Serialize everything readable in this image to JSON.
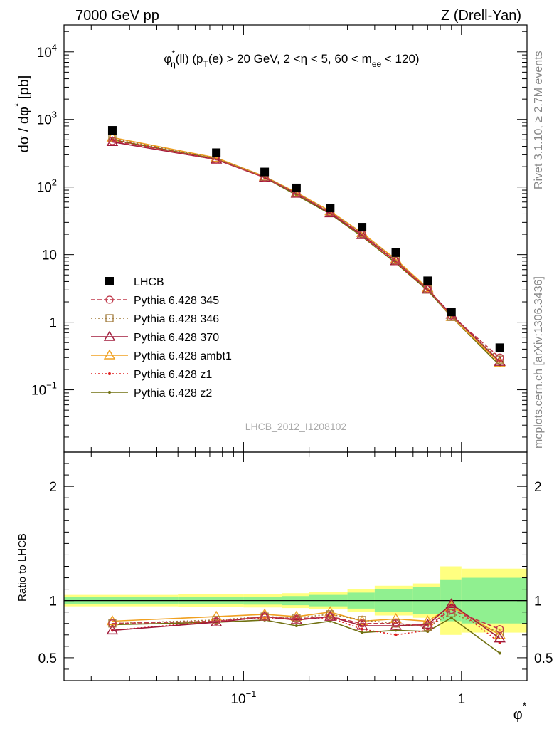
{
  "header": {
    "left_label": "7000 GeV pp",
    "right_label": "Z (Drell-Yan)"
  },
  "side": {
    "rivet": "Rivet 3.1.10, ≥ 2.7M events",
    "mcplots": "mcplots.cern.ch [arXiv:1306.3436]"
  },
  "watermark": "LHCB_2012_I1208102",
  "chart_data": [
    {
      "type": "scatter",
      "panel": "main",
      "title": "φ*η(ll) (pT(e) > 20 GeV, 2 <η < 5, 60 < mee < 120)",
      "ylabel": "dσ / dφ* [pb]",
      "xscale": "log",
      "yscale": "log",
      "xlim": [
        0.015,
        2
      ],
      "ylim": [
        0.012,
        25000
      ],
      "x": [
        0.025,
        0.075,
        0.125,
        0.175,
        0.25,
        0.35,
        0.5,
        0.7,
        0.9,
        1.5
      ],
      "x_tick_labels": [
        "10^-1",
        "1"
      ],
      "y_tick_labels": [
        "10^-1",
        "1",
        "10",
        "10^2",
        "10^3",
        "10^4"
      ],
      "series": [
        {
          "name": "LHCB",
          "color": "#000000",
          "marker": "square",
          "values": [
            690,
            322,
            167,
            97,
            49,
            25.5,
            10.7,
            4.1,
            1.42,
            0.42
          ]
        },
        {
          "name": "Pythia 6.428 345",
          "color": "#c0394a",
          "marker": "circle-open",
          "line": "dashed",
          "values": [
            480,
            255,
            138,
            80,
            42,
            20,
            8.0,
            3.1,
            1.25,
            0.3
          ]
        },
        {
          "name": "Pythia 6.428 346",
          "color": "#a07a3a",
          "marker": "square-open",
          "line": "dotted",
          "values": [
            525,
            265,
            142,
            82,
            43,
            20.5,
            8.2,
            3.05,
            1.2,
            0.28
          ]
        },
        {
          "name": "Pythia 6.428 370",
          "color": "#a01a3a",
          "marker": "triangle-open",
          "line": "solid",
          "values": [
            465,
            255,
            138,
            80,
            41,
            19.5,
            8.0,
            3.05,
            1.3,
            0.26
          ]
        },
        {
          "name": "Pythia 6.428 ambt1",
          "color": "#f0a020",
          "marker": "triangle-open",
          "line": "solid",
          "values": [
            540,
            270,
            143,
            83,
            44,
            21,
            8.5,
            3.2,
            1.2,
            0.25
          ]
        },
        {
          "name": "Pythia 6.428 z1",
          "color": "#e02020",
          "marker": "dot",
          "line": "dotted",
          "values": [
            505,
            260,
            140,
            81,
            41.5,
            19,
            7.6,
            3.0,
            1.25,
            0.27
          ]
        },
        {
          "name": "Pythia 6.428 z2",
          "color": "#707010",
          "marker": "dot",
          "line": "solid",
          "values": [
            500,
            260,
            138,
            76,
            40,
            18.5,
            7.5,
            2.95,
            1.2,
            0.23
          ]
        }
      ]
    },
    {
      "type": "line",
      "panel": "ratio",
      "ylabel": "Ratio to LHCB",
      "xlabel": "φ*",
      "xscale": "log",
      "xlim": [
        0.015,
        2
      ],
      "ylim": [
        0.3,
        2.3
      ],
      "y_tick_labels": [
        "0.5",
        "1",
        "2"
      ],
      "x": [
        0.025,
        0.075,
        0.125,
        0.175,
        0.25,
        0.35,
        0.5,
        0.7,
        0.9,
        1.5
      ],
      "bin_edges": [
        0.015,
        0.05,
        0.1,
        0.15,
        0.2,
        0.3,
        0.4,
        0.6,
        0.8,
        1.0,
        2.0
      ],
      "band_stat_half": [
        0.03,
        0.03,
        0.035,
        0.04,
        0.05,
        0.07,
        0.1,
        0.12,
        0.18,
        0.2
      ],
      "band_total_half": [
        0.05,
        0.055,
        0.06,
        0.065,
        0.075,
        0.1,
        0.13,
        0.15,
        0.3,
        0.28
      ],
      "series": [
        {
          "name": "Pythia 6.428 345",
          "color": "#c0394a",
          "values": [
            0.8,
            0.82,
            0.86,
            0.84,
            0.86,
            0.8,
            0.8,
            0.78,
            0.92,
            0.75
          ]
        },
        {
          "name": "Pythia 6.428 346",
          "color": "#a07a3a",
          "values": [
            0.8,
            0.83,
            0.86,
            0.85,
            0.88,
            0.83,
            0.8,
            0.77,
            0.89,
            0.72
          ]
        },
        {
          "name": "Pythia 6.428 370",
          "color": "#a01a3a",
          "values": [
            0.74,
            0.81,
            0.86,
            0.83,
            0.86,
            0.78,
            0.78,
            0.79,
            0.97,
            0.67
          ]
        },
        {
          "name": "Pythia 6.428 ambt1",
          "color": "#f0a020",
          "values": [
            0.82,
            0.86,
            0.88,
            0.86,
            0.9,
            0.82,
            0.84,
            0.82,
            0.95,
            0.7
          ]
        },
        {
          "name": "Pythia 6.428 z1",
          "color": "#e02020",
          "values": [
            0.74,
            0.82,
            0.85,
            0.84,
            0.85,
            0.75,
            0.7,
            0.74,
            0.96,
            0.63
          ]
        },
        {
          "name": "Pythia 6.428 z2",
          "color": "#707010",
          "values": [
            0.79,
            0.81,
            0.83,
            0.78,
            0.82,
            0.72,
            0.74,
            0.73,
            0.85,
            0.54
          ]
        }
      ]
    }
  ]
}
